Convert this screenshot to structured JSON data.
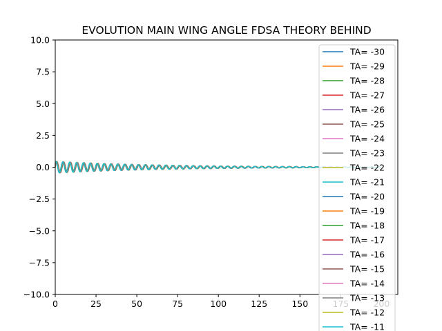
{
  "chart_data": {
    "type": "line",
    "title": "EVOLUTION MAIN WING ANGLE FDSA THEORY BEHIND",
    "xlabel": "",
    "ylabel": "",
    "xlim": [
      0,
      210
    ],
    "ylim": [
      -10.0,
      10.0
    ],
    "x_ticks": [
      "0",
      "25",
      "50",
      "75",
      "100",
      "125",
      "150",
      "175",
      "200"
    ],
    "y_ticks": [
      "10.0",
      "7.5",
      "5.0",
      "2.5",
      "0.0",
      "−2.5",
      "−5.0",
      "−7.5",
      "−10.0"
    ],
    "grid": false,
    "legend_position": "top-right",
    "signal": {
      "description_values": {
        "initial_amplitude": 0.45,
        "final_amplitude": 0.02,
        "oscillation_period": 4.2,
        "x_start": 0,
        "x_end": 200
      }
    },
    "series": [
      {
        "name": "TA= -30",
        "color": "#1f77b4"
      },
      {
        "name": "TA= -29",
        "color": "#ff7f0e"
      },
      {
        "name": "TA= -28",
        "color": "#2ca02c"
      },
      {
        "name": "TA= -27",
        "color": "#d62728"
      },
      {
        "name": "TA= -26",
        "color": "#9467bd"
      },
      {
        "name": "TA= -25",
        "color": "#8c564b"
      },
      {
        "name": "TA= -24",
        "color": "#e377c2"
      },
      {
        "name": "TA= -23",
        "color": "#7f7f7f"
      },
      {
        "name": "TA= -22",
        "color": "#bcbd22"
      },
      {
        "name": "TA= -21",
        "color": "#17becf"
      },
      {
        "name": "TA= -20",
        "color": "#1f77b4"
      },
      {
        "name": "TA= -19",
        "color": "#ff7f0e"
      },
      {
        "name": "TA= -18",
        "color": "#2ca02c"
      },
      {
        "name": "TA= -17",
        "color": "#d62728"
      },
      {
        "name": "TA= -16",
        "color": "#9467bd"
      },
      {
        "name": "TA= -15",
        "color": "#8c564b"
      },
      {
        "name": "TA= -14",
        "color": "#e377c2"
      },
      {
        "name": "TA= -13",
        "color": "#7f7f7f"
      },
      {
        "name": "TA= -12",
        "color": "#bcbd22"
      },
      {
        "name": "TA= -11",
        "color": "#17becf"
      }
    ]
  }
}
